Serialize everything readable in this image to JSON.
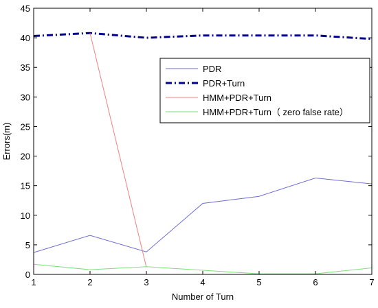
{
  "chart_data": {
    "type": "line",
    "title": "",
    "xlabel": "Number of Turn",
    "ylabel": "Errors(m)",
    "xlim": [
      1,
      7
    ],
    "ylim": [
      0,
      45
    ],
    "xticks": [
      1,
      2,
      3,
      4,
      5,
      6,
      7
    ],
    "yticks": [
      0,
      5,
      10,
      15,
      20,
      25,
      30,
      35,
      40,
      45
    ],
    "grid": false,
    "legend_position": "upper-right",
    "series": [
      {
        "name": "PDR",
        "color": "#6b6bd6",
        "style": "solid",
        "x": [
          1,
          2,
          3,
          4,
          5,
          6,
          7
        ],
        "values": [
          3.7,
          6.6,
          3.8,
          12.0,
          13.2,
          16.3,
          15.3
        ]
      },
      {
        "name": "PDR+Turn",
        "color": "#00008b",
        "style": "dashdot",
        "x": [
          1,
          2,
          3,
          4,
          5,
          6,
          7
        ],
        "values": [
          40.3,
          40.8,
          40.0,
          40.4,
          40.4,
          40.4,
          39.8
        ]
      },
      {
        "name": "HMM+PDR+Turn",
        "color": "#f08080",
        "style": "solid",
        "x": [
          2,
          3
        ],
        "values": [
          40.8,
          1.2
        ]
      },
      {
        "name": "HMM+PDR+Turn（ zero false rate）",
        "color": "#7be07b",
        "style": "solid",
        "x": [
          1,
          2,
          3,
          4,
          5,
          6,
          7
        ],
        "values": [
          1.7,
          0.8,
          1.3,
          0.7,
          0.1,
          0.1,
          1.1
        ]
      }
    ]
  }
}
